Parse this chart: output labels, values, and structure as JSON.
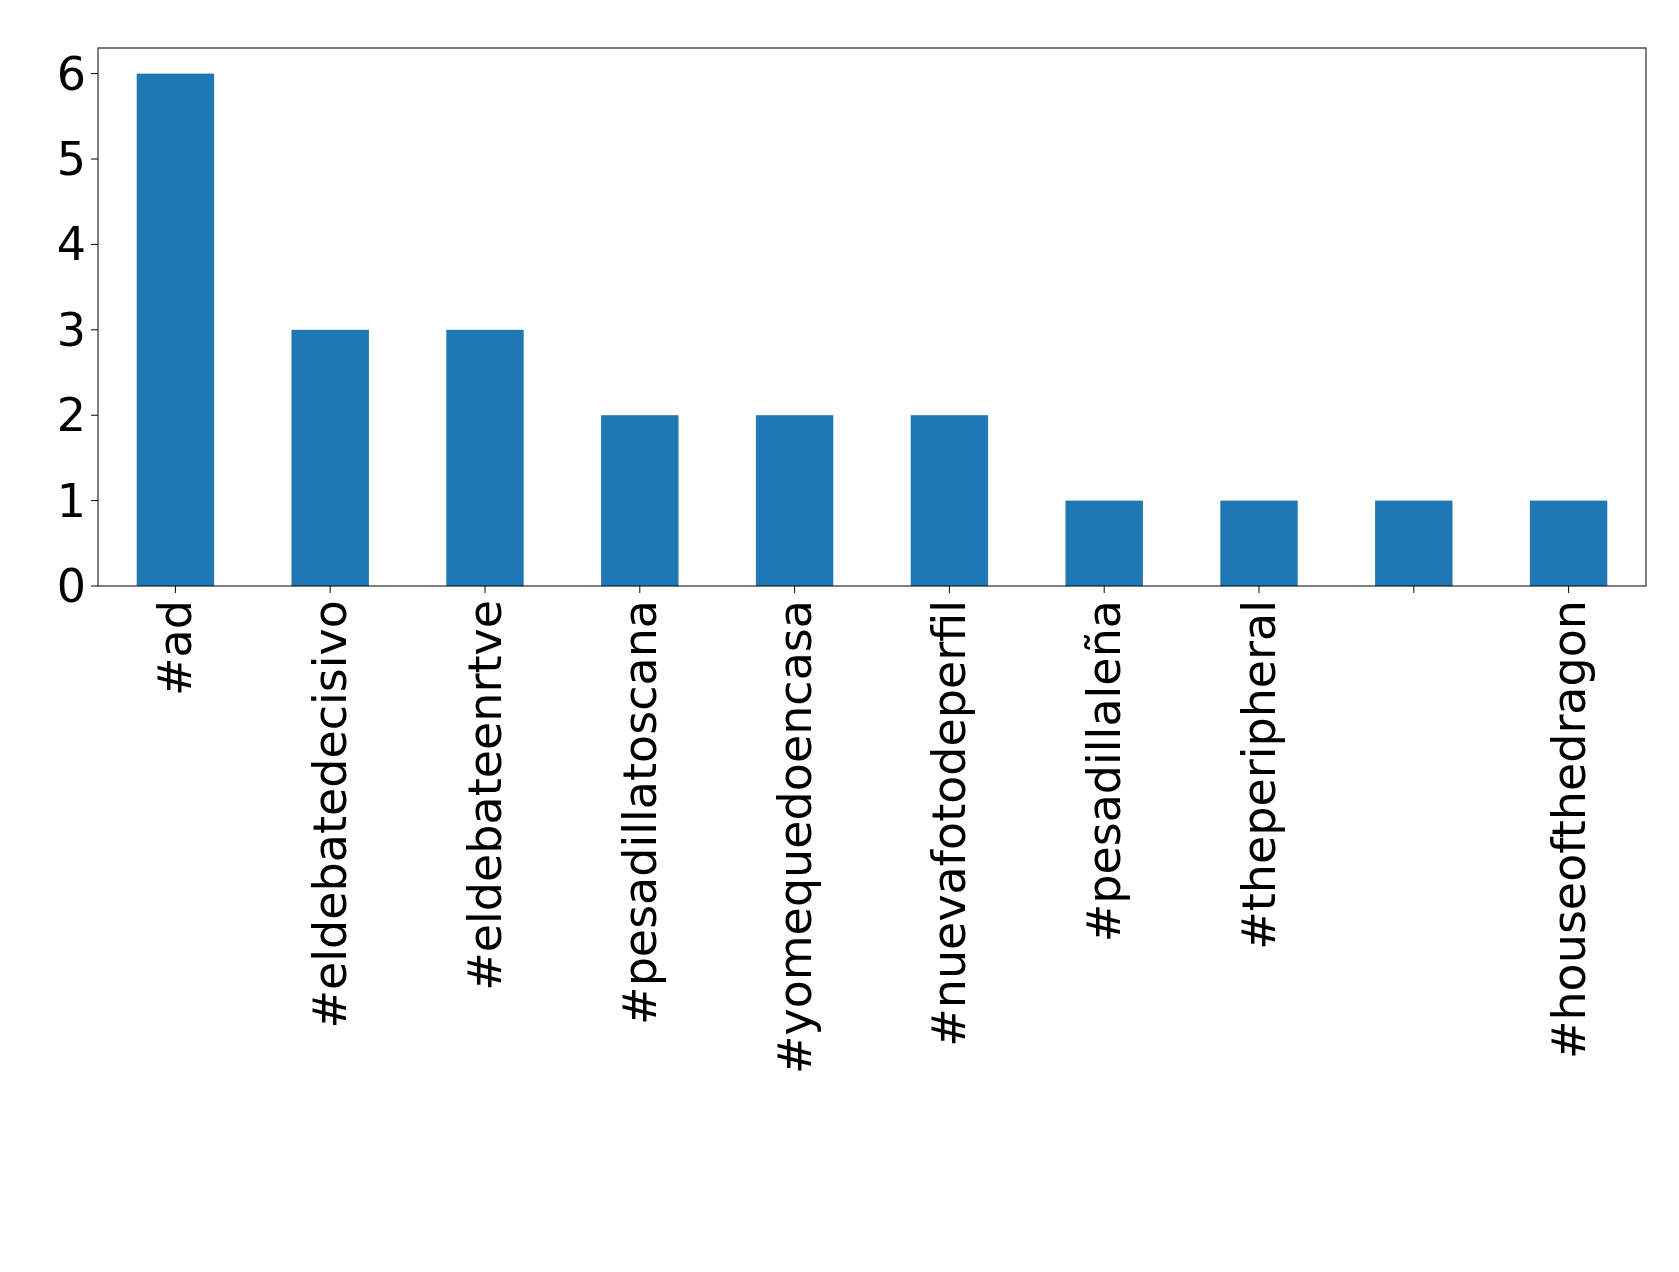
{
  "chart_data": {
    "type": "bar",
    "categories": [
      "#ad",
      "#eldebatedecisivo",
      "#eldebateenrtve",
      "#pesadillatoscana",
      "#yomequedoencasa",
      "#nuevafotodeperfil",
      "#pesadillaleña",
      "#theperipheral",
      null,
      "#houseofthedragon"
    ],
    "values": [
      6,
      3,
      3,
      2,
      2,
      2,
      1,
      1,
      1,
      1
    ],
    "color": "#1f77b4",
    "ylim": [
      0,
      6.3
    ],
    "yticks": [
      0,
      1,
      2,
      3,
      4,
      5,
      6
    ],
    "grid": false
  }
}
